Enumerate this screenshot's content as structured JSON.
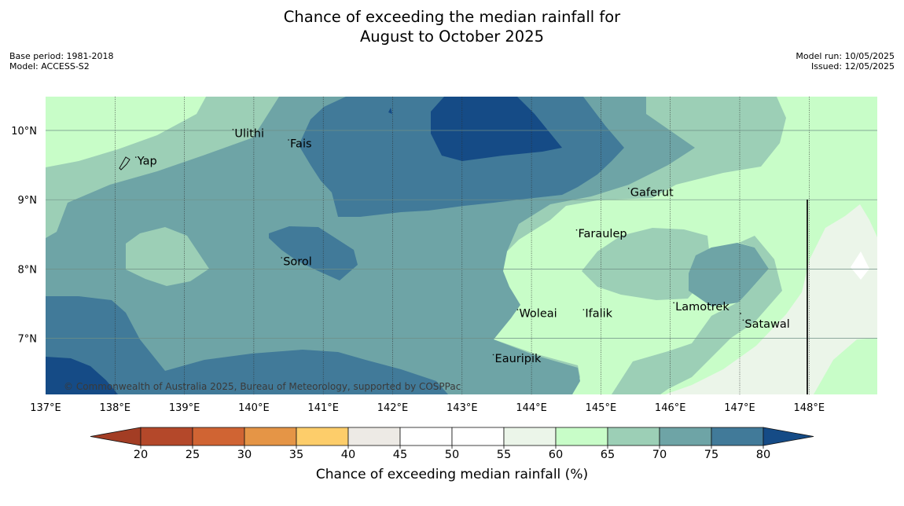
{
  "title": {
    "line1": "Chance of exceeding the median rainfall for",
    "line2": "August to October 2025"
  },
  "meta": {
    "base_period": "Base period: 1981-2018",
    "model": "Model: ACCESS-S2",
    "model_run": "Model run: 10/05/2025",
    "issued": "Issued: 12/05/2025"
  },
  "map": {
    "lon_ticks": [
      "137°E",
      "138°E",
      "139°E",
      "140°E",
      "141°E",
      "142°E",
      "143°E",
      "144°E",
      "145°E",
      "146°E",
      "147°E",
      "148°E"
    ],
    "lat_ticks": [
      "10°N",
      "9°N",
      "8°N",
      "7°N"
    ],
    "copyright": "© Commonwealth of Australia 2025, Bureau of Meteorology, supported by COSPPac",
    "places": [
      {
        "name": "Yap",
        "lon": 138.3,
        "lat": 9.5
      },
      {
        "name": "Ulithi",
        "lon": 139.7,
        "lat": 9.9
      },
      {
        "name": "Fais",
        "lon": 140.5,
        "lat": 9.75
      },
      {
        "name": "Gaferut",
        "lon": 145.4,
        "lat": 9.05
      },
      {
        "name": "Faraulep",
        "lon": 144.65,
        "lat": 8.45
      },
      {
        "name": "Sorol",
        "lon": 140.4,
        "lat": 8.05
      },
      {
        "name": "Lamotrek",
        "lon": 146.05,
        "lat": 7.4
      },
      {
        "name": "Woleai",
        "lon": 143.8,
        "lat": 7.3
      },
      {
        "name": "Ifalik",
        "lon": 144.75,
        "lat": 7.3
      },
      {
        "name": "Satawal",
        "lon": 147.05,
        "lat": 7.15
      },
      {
        "name": "Eauripik",
        "lon": 143.45,
        "lat": 6.65
      }
    ]
  },
  "colorbar": {
    "title": "Chance of exceeding median rainfall (%)",
    "tick_labels": [
      "20",
      "25",
      "30",
      "35",
      "40",
      "45",
      "50",
      "55",
      "60",
      "65",
      "70",
      "75",
      "80"
    ],
    "under_color": "#a33d24",
    "over_color": "#154b86",
    "bins": [
      {
        "from": 20,
        "to": 25,
        "color": "#b4482a"
      },
      {
        "from": 25,
        "to": 30,
        "color": "#d06433"
      },
      {
        "from": 30,
        "to": 35,
        "color": "#e59546"
      },
      {
        "from": 35,
        "to": 40,
        "color": "#fdcd6a"
      },
      {
        "from": 40,
        "to": 45,
        "color": "#edeae5"
      },
      {
        "from": 45,
        "to": 50,
        "color": "#ffffff"
      },
      {
        "from": 50,
        "to": 55,
        "color": "#ffffff"
      },
      {
        "from": 55,
        "to": 60,
        "color": "#ebf5e9"
      },
      {
        "from": 60,
        "to": 65,
        "color": "#c8fdc8"
      },
      {
        "from": 65,
        "to": 70,
        "color": "#9ccfb6"
      },
      {
        "from": 70,
        "to": 75,
        "color": "#6ea4a6"
      },
      {
        "from": 75,
        "to": 80,
        "color": "#417a99"
      }
    ]
  }
}
